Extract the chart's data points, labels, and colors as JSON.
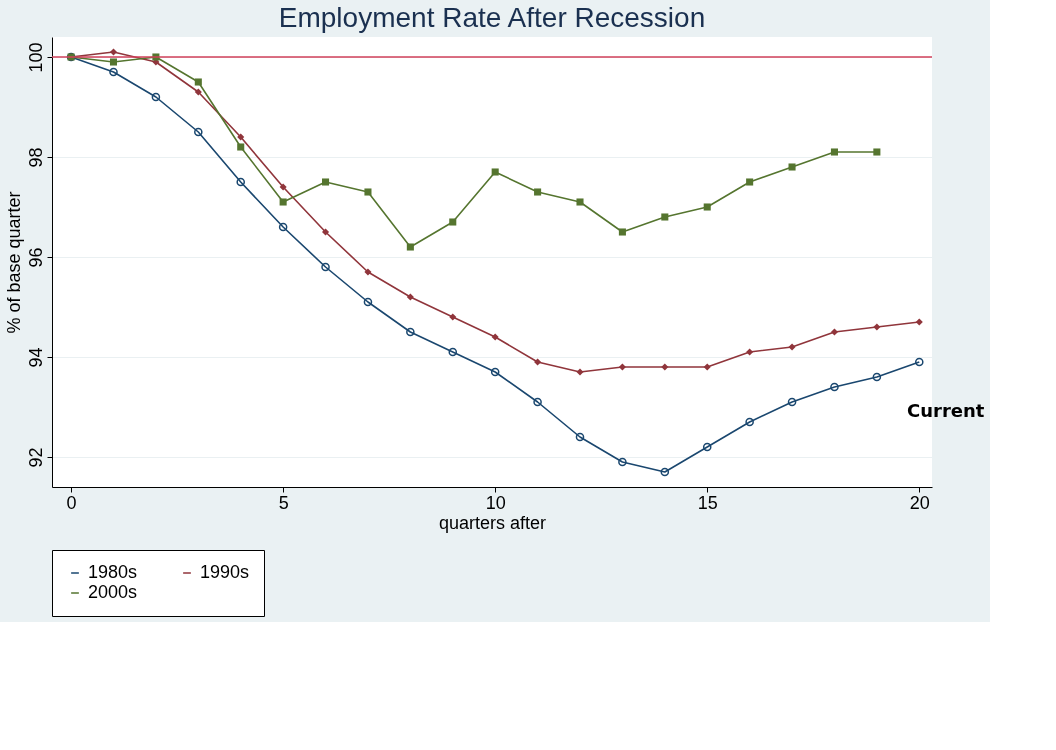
{
  "chart_data": {
    "type": "line",
    "title": "Employment Rate After Recession",
    "xlabel": "quarters after",
    "ylabel": "% of base quarter",
    "x": [
      0,
      1,
      2,
      3,
      4,
      5,
      6,
      7,
      8,
      9,
      10,
      11,
      12,
      13,
      14,
      15,
      16,
      17,
      18,
      19,
      20
    ],
    "series": [
      {
        "name": "1980s",
        "color": "#1a476f",
        "marker": "circle",
        "values": [
          100,
          99.7,
          99.2,
          98.5,
          97.5,
          96.6,
          95.8,
          95.1,
          94.5,
          94.1,
          93.7,
          93.1,
          92.4,
          91.9,
          91.7,
          92.2,
          92.7,
          93.1,
          93.4,
          93.6,
          93.9
        ]
      },
      {
        "name": "1990s",
        "color": "#90353b",
        "marker": "diamond",
        "values": [
          100,
          100.1,
          99.9,
          99.3,
          98.4,
          97.4,
          96.5,
          95.7,
          95.2,
          94.8,
          94.4,
          93.9,
          93.7,
          93.8,
          93.8,
          93.8,
          94.1,
          94.2,
          94.5,
          94.6,
          94.7
        ]
      },
      {
        "name": "2000s",
        "color": "#55752f",
        "marker": "square",
        "values": [
          100,
          99.9,
          100,
          99.5,
          98.2,
          97.1,
          97.5,
          97.3,
          96.2,
          96.7,
          97.7,
          97.3,
          97.1,
          96.5,
          96.8,
          97.0,
          97.5,
          97.8,
          98.1,
          98.1,
          null
        ]
      }
    ],
    "xlim": [
      -0.45,
      20.3
    ],
    "ylim": [
      91.4,
      100.4
    ],
    "xticks": [
      0,
      5,
      10,
      15,
      20
    ],
    "yticks": [
      92,
      94,
      96,
      98,
      100
    ],
    "ref_lines": [
      {
        "axis": "y",
        "value": 100,
        "color": "#d0405a"
      }
    ],
    "annotations": [
      "Current"
    ],
    "grid": "y",
    "legend": "bottom",
    "line_style": "solid"
  }
}
